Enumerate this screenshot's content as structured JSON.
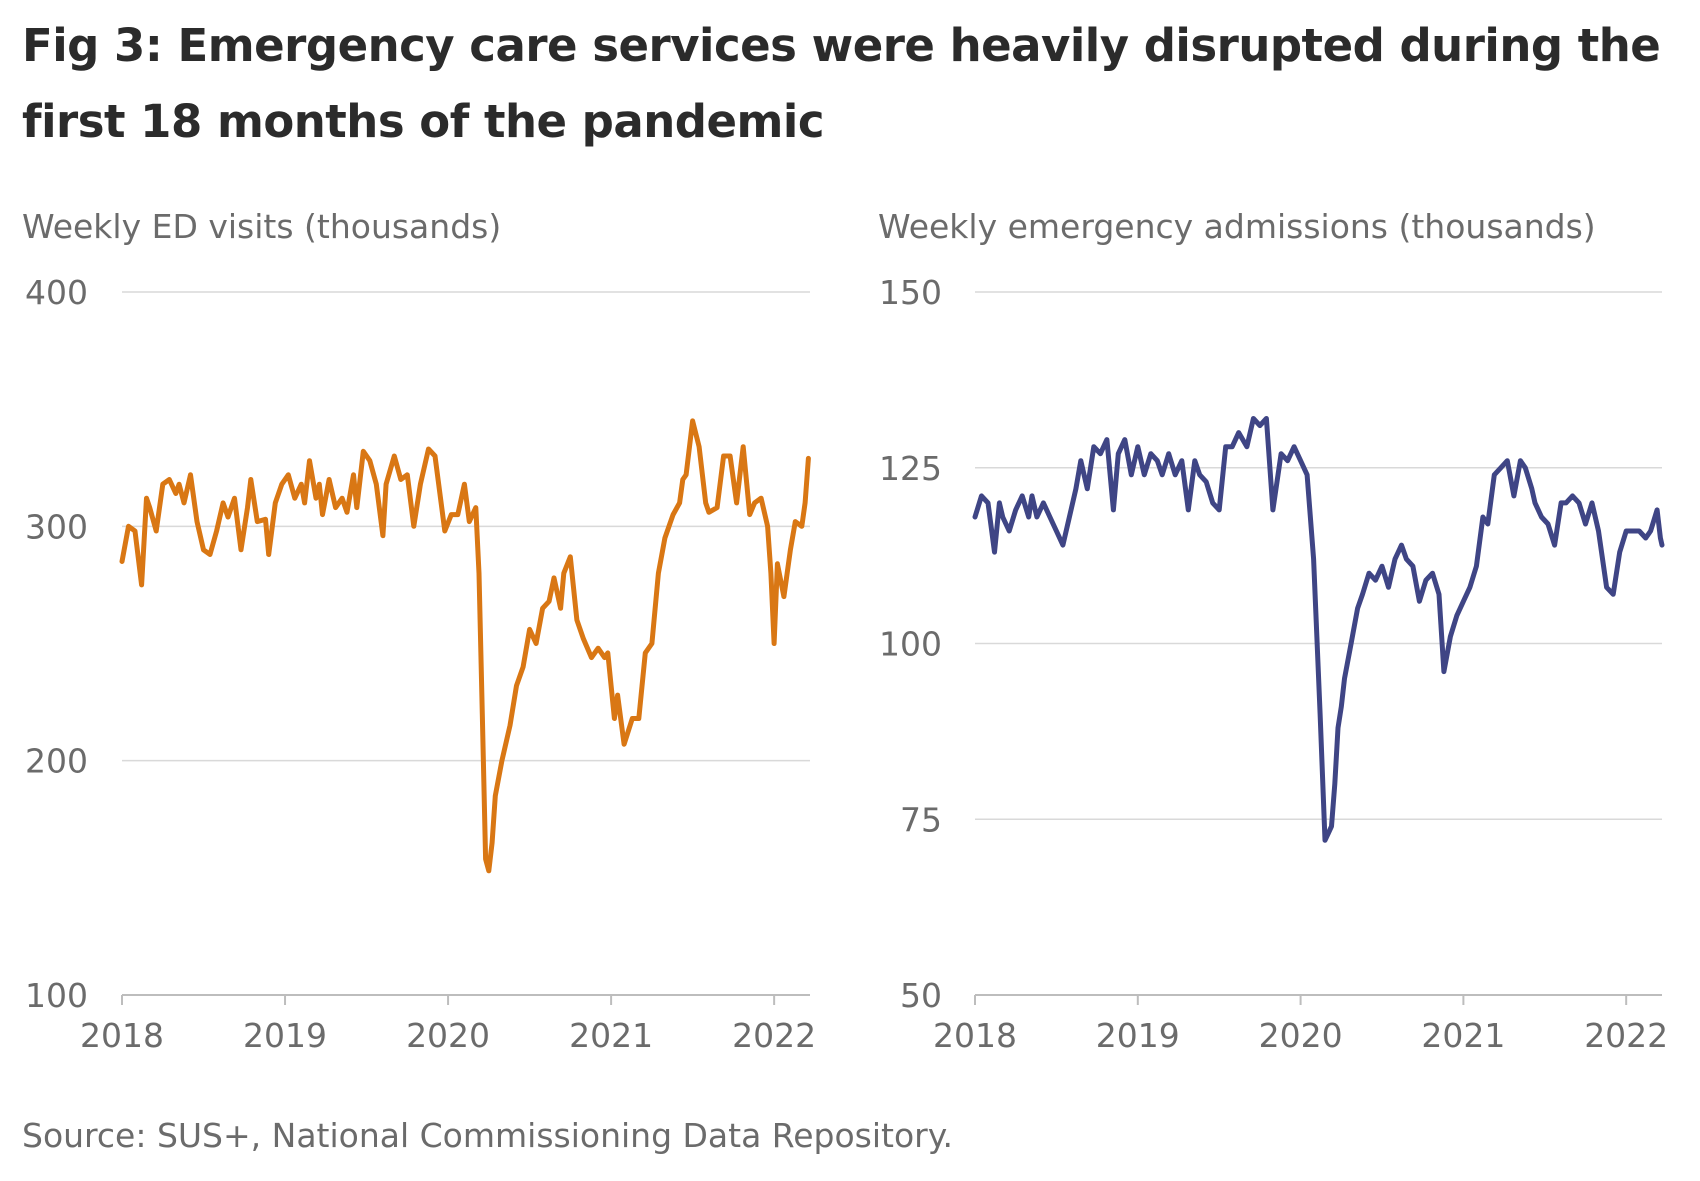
{
  "title": "Fig 3: Emergency care services were heavily disrupted during the first 18 months of the pandemic",
  "source": "Source: SUS+, National Commissioning Data Repository.",
  "colors": {
    "ed": "#d97714",
    "admissions": "#3f4585",
    "grid": "#d9d9d9",
    "axis": "#bdbdbd",
    "text": "#6b6b6b"
  },
  "chart_data": [
    {
      "type": "line",
      "title": "Weekly ED visits (thousands)",
      "xlabel": "",
      "ylabel": "",
      "xticks": [
        "2018",
        "2019",
        "2020",
        "2021",
        "2022"
      ],
      "xlim": [
        2018.0,
        2022.22
      ],
      "yticks": [
        "100",
        "200",
        "300",
        "400"
      ],
      "ylim": [
        100,
        400
      ],
      "grid": true,
      "color": "#d97714",
      "x": [
        2018.0,
        2018.04,
        2018.08,
        2018.12,
        2018.15,
        2018.17,
        2018.21,
        2018.25,
        2018.29,
        2018.33,
        2018.35,
        2018.38,
        2018.42,
        2018.46,
        2018.5,
        2018.54,
        2018.58,
        2018.62,
        2018.65,
        2018.69,
        2018.73,
        2018.77,
        2018.79,
        2018.83,
        2018.88,
        2018.9,
        2018.94,
        2018.98,
        2019.02,
        2019.06,
        2019.1,
        2019.12,
        2019.15,
        2019.19,
        2019.21,
        2019.23,
        2019.27,
        2019.31,
        2019.35,
        2019.38,
        2019.42,
        2019.44,
        2019.48,
        2019.52,
        2019.56,
        2019.6,
        2019.62,
        2019.67,
        2019.71,
        2019.75,
        2019.79,
        2019.83,
        2019.88,
        2019.92,
        2019.98,
        2020.02,
        2020.06,
        2020.1,
        2020.13,
        2020.17,
        2020.19,
        2020.21,
        2020.23,
        2020.25,
        2020.27,
        2020.29,
        2020.33,
        2020.38,
        2020.42,
        2020.46,
        2020.5,
        2020.54,
        2020.58,
        2020.62,
        2020.65,
        2020.69,
        2020.71,
        2020.75,
        2020.79,
        2020.83,
        2020.88,
        2020.92,
        2020.96,
        2020.98,
        2021.0,
        2021.02,
        2021.04,
        2021.08,
        2021.13,
        2021.17,
        2021.21,
        2021.25,
        2021.29,
        2021.33,
        2021.38,
        2021.42,
        2021.44,
        2021.46,
        2021.5,
        2021.54,
        2021.58,
        2021.6,
        2021.65,
        2021.69,
        2021.73,
        2021.77,
        2021.81,
        2021.85,
        2021.88,
        2021.92,
        2021.96,
        2021.98,
        2022.0,
        2022.02,
        2022.06,
        2022.1,
        2022.13,
        2022.17,
        2022.19,
        2022.21
      ],
      "values": [
        285,
        300,
        298,
        275,
        312,
        308,
        298,
        318,
        320,
        314,
        318,
        310,
        322,
        302,
        290,
        288,
        298,
        310,
        304,
        312,
        290,
        308,
        320,
        302,
        303,
        288,
        310,
        318,
        322,
        312,
        318,
        310,
        328,
        312,
        318,
        305,
        320,
        308,
        312,
        306,
        322,
        308,
        332,
        328,
        318,
        296,
        318,
        330,
        320,
        322,
        300,
        318,
        333,
        330,
        298,
        305,
        305,
        318,
        302,
        308,
        280,
        220,
        158,
        153,
        165,
        185,
        200,
        215,
        232,
        240,
        256,
        250,
        265,
        268,
        278,
        265,
        280,
        287,
        260,
        252,
        244,
        248,
        244,
        246,
        232,
        218,
        228,
        207,
        218,
        218,
        246,
        250,
        280,
        295,
        305,
        310,
        320,
        322,
        345,
        334,
        310,
        306,
        308,
        330,
        330,
        310,
        334,
        305,
        310,
        312,
        300,
        280,
        250,
        284,
        270,
        290,
        302,
        300,
        310,
        329
      ]
    },
    {
      "type": "line",
      "title": "Weekly emergency admissions (thousands)",
      "xlabel": "",
      "ylabel": "",
      "xticks": [
        "2018",
        "2019",
        "2020",
        "2021",
        "2022"
      ],
      "xlim": [
        2018.0,
        2022.22
      ],
      "yticks": [
        "50",
        "75",
        "100",
        "125",
        "150"
      ],
      "ylim": [
        50,
        150
      ],
      "grid": true,
      "color": "#3f4585",
      "x": [
        2018.0,
        2018.04,
        2018.08,
        2018.12,
        2018.15,
        2018.17,
        2018.21,
        2018.25,
        2018.29,
        2018.33,
        2018.35,
        2018.38,
        2018.42,
        2018.46,
        2018.5,
        2018.54,
        2018.58,
        2018.62,
        2018.65,
        2018.69,
        2018.73,
        2018.77,
        2018.81,
        2018.85,
        2018.88,
        2018.92,
        2018.96,
        2019.0,
        2019.04,
        2019.08,
        2019.12,
        2019.15,
        2019.19,
        2019.23,
        2019.27,
        2019.31,
        2019.35,
        2019.38,
        2019.42,
        2019.46,
        2019.5,
        2019.54,
        2019.58,
        2019.62,
        2019.67,
        2019.71,
        2019.75,
        2019.79,
        2019.83,
        2019.88,
        2019.92,
        2019.96,
        2020.0,
        2020.04,
        2020.08,
        2020.12,
        2020.15,
        2020.17,
        2020.19,
        2020.21,
        2020.23,
        2020.25,
        2020.27,
        2020.31,
        2020.35,
        2020.38,
        2020.42,
        2020.46,
        2020.5,
        2020.54,
        2020.58,
        2020.62,
        2020.65,
        2020.69,
        2020.73,
        2020.77,
        2020.81,
        2020.85,
        2020.88,
        2020.92,
        2020.96,
        2021.0,
        2021.04,
        2021.08,
        2021.12,
        2021.15,
        2021.19,
        2021.23,
        2021.27,
        2021.31,
        2021.35,
        2021.38,
        2021.42,
        2021.44,
        2021.48,
        2021.52,
        2021.56,
        2021.6,
        2021.63,
        2021.67,
        2021.71,
        2021.75,
        2021.79,
        2021.83,
        2021.88,
        2021.92,
        2021.96,
        2022.0,
        2022.04,
        2022.08,
        2022.12,
        2022.15,
        2022.19,
        2022.21,
        2022.22
      ],
      "values": [
        118,
        121,
        120,
        113,
        120,
        118,
        116,
        119,
        121,
        118,
        121,
        118,
        120,
        118,
        116,
        114,
        118,
        122,
        126,
        122,
        128,
        127,
        129,
        119,
        127,
        129,
        124,
        128,
        124,
        127,
        126,
        124,
        127,
        124,
        126,
        119,
        126,
        124,
        123,
        120,
        119,
        128,
        128,
        130,
        128,
        132,
        131,
        132,
        119,
        127,
        126,
        128,
        126,
        124,
        112,
        90,
        72,
        73,
        74,
        80,
        88,
        91,
        95,
        100,
        105,
        107,
        110,
        109,
        111,
        108,
        112,
        114,
        112,
        111,
        106,
        109,
        110,
        107,
        96,
        101,
        104,
        106,
        108,
        111,
        118,
        117,
        124,
        125,
        126,
        121,
        126,
        125,
        122,
        120,
        118,
        117,
        114,
        120,
        120,
        121,
        120,
        117,
        120,
        116,
        108,
        107,
        113,
        116,
        116,
        116,
        115,
        116,
        119,
        115,
        114
      ]
    }
  ]
}
